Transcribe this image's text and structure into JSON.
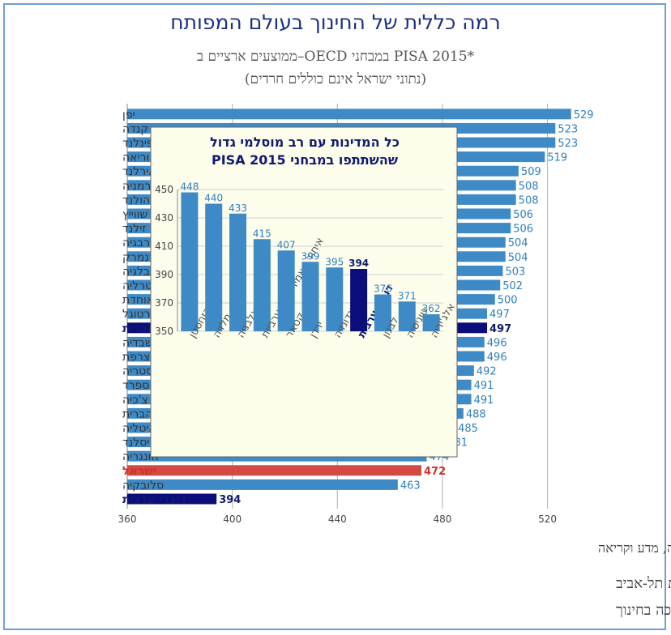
{
  "title": "רמה כללית של החינוך בעולם המפותח",
  "subtitle": "ממוצעים ארציים ב–OECD במבחני PISA 2015*",
  "subtitle2": "(נתוני ישראל אינם כוללים חרדים)",
  "footnote": "* ממוצע ארצי במבחנים במתמטיקה, מדע וקריאה",
  "source": "מקור: דן בן-דוד, מוסד שורש ואוניברסיטת תל-אביב",
  "data_source": "נתונים: PISA והרשות הארצית למדידה והערכה בחינוך",
  "colors": {
    "normal": "#3e8ac6",
    "highlight_dark": "#0a0d7a",
    "israel": "#d34a42",
    "label_blue": "#2f7fbf",
    "inset_bg": "#fdfdec"
  },
  "chart_data": [
    {
      "type": "bar",
      "orientation": "horizontal",
      "title": "רמה כללית של החינוך בעולם המפותח",
      "xlim": [
        360,
        540
      ],
      "xticks": [
        360,
        400,
        440,
        480,
        520
      ],
      "grid": true,
      "categories": [
        "יפן",
        "קנדה",
        "פינלנד",
        "קוריאה",
        "אירלנד",
        "גרמניה",
        "הולנד",
        "שווייץ",
        "ניו זילנד",
        "נורבגיה",
        "דנמרק",
        "בלגיה",
        "אוסטרליה",
        "הממלכה המאוחדת",
        "פורטוגל",
        "דוברי עברית",
        "שבדיה",
        "צרפת",
        "אוסטריה",
        "ספרד",
        "צ'כיה",
        "ארצות הברית",
        "איטליה",
        "איסלנד",
        "הונגריה",
        "ישראל",
        "סלובקיה",
        "דוברי ערבית"
      ],
      "values": [
        529,
        523,
        523,
        519,
        509,
        508,
        508,
        506,
        506,
        504,
        504,
        503,
        502,
        500,
        497,
        497,
        496,
        496,
        492,
        491,
        491,
        488,
        485,
        481,
        474,
        472,
        463,
        394
      ],
      "highlight": {
        "דוברי עברית": "dark",
        "ישראל": "israel",
        "דוברי ערבית": "dark"
      }
    },
    {
      "type": "bar",
      "title": "כל המדינות עם רב מוסלמי גדול שהשתתפו במבחני PISA 2015",
      "ylim": [
        350,
        450
      ],
      "yticks": [
        350,
        370,
        390,
        410,
        430,
        450
      ],
      "categories": [
        "קזחסטן",
        "מלזיה",
        "אלבניה",
        "איחוד האמירויות הערביות",
        "קטאר",
        "ירדן",
        "אינדונזיה",
        "דוברי ערבית",
        "לבנון",
        "טוניסיה",
        "אלג'יריה"
      ],
      "values": [
        448,
        440,
        433,
        415,
        407,
        399,
        395,
        394,
        376,
        371,
        362
      ],
      "highlight": {
        "דוברי ערבית": "dark"
      }
    }
  ]
}
